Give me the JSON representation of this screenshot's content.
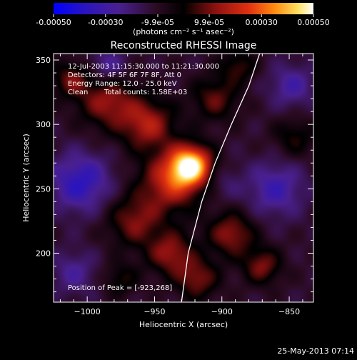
{
  "colorbar": {
    "ticks": [
      {
        "value": -0.0005,
        "label": "-0.00050"
      },
      {
        "value": -0.0003,
        "label": "-0.00030"
      },
      {
        "value": -9.9e-05,
        "label": "-9.9e-05"
      },
      {
        "value": 9.9e-05,
        "label": "9.9e-05"
      },
      {
        "value": 0.0003,
        "label": "0.00030"
      },
      {
        "value": 0.0005,
        "label": "0.00050"
      }
    ],
    "range": [
      -0.0005,
      0.0005
    ],
    "units_label": "(photons cm⁻² s⁻¹ asec⁻²)",
    "colors": [
      "#0000ff",
      "#3a1a8a",
      "#5a2a8a",
      "#2a0a10",
      "#000000",
      "#8a1010",
      "#e03010",
      "#ff7a10",
      "#ffd040",
      "#ffffff"
    ]
  },
  "chart_data": {
    "type": "heatmap",
    "title": "Reconstructed RHESSI Image",
    "xlabel": "Heliocentric X (arcsec)",
    "ylabel": "Heliocentric Y (arcsec)",
    "xlim": [
      -1025,
      -832
    ],
    "ylim": [
      162,
      355
    ],
    "x_ticks": [
      -1000,
      -950,
      -900,
      -850
    ],
    "y_ticks": [
      200,
      250,
      300,
      350
    ],
    "x_tick_labels": [
      "−1000",
      "−950",
      "−900",
      "−850"
    ],
    "y_tick_labels": [
      "200",
      "250",
      "300",
      "350"
    ],
    "peak": {
      "x": -923,
      "y": 268
    },
    "limb": [
      [
        -930,
        162
      ],
      [
        -925,
        200
      ],
      [
        -915,
        240
      ],
      [
        -905,
        270
      ],
      [
        -893,
        300
      ],
      [
        -880,
        330
      ],
      [
        -872,
        355
      ]
    ],
    "sources": [
      {
        "x": -923,
        "y": 268,
        "amp": 1.0,
        "sigma": 11
      },
      {
        "x": -938,
        "y": 255,
        "amp": 0.55,
        "sigma": 16
      },
      {
        "x": -955,
        "y": 300,
        "amp": 0.5,
        "sigma": 14
      },
      {
        "x": -985,
        "y": 318,
        "amp": 0.45,
        "sigma": 15
      },
      {
        "x": -1012,
        "y": 335,
        "amp": 0.35,
        "sigma": 10
      },
      {
        "x": -965,
        "y": 225,
        "amp": 0.4,
        "sigma": 14
      },
      {
        "x": -938,
        "y": 200,
        "amp": 0.45,
        "sigma": 12
      },
      {
        "x": -918,
        "y": 180,
        "amp": 0.4,
        "sigma": 11
      },
      {
        "x": -893,
        "y": 215,
        "amp": 0.45,
        "sigma": 12
      },
      {
        "x": -870,
        "y": 190,
        "amp": 0.4,
        "sigma": 10
      },
      {
        "x": -905,
        "y": 320,
        "amp": 0.35,
        "sigma": 12
      },
      {
        "x": -888,
        "y": 345,
        "amp": 0.3,
        "sigma": 9
      },
      {
        "x": -846,
        "y": 290,
        "amp": 0.25,
        "sigma": 11
      },
      {
        "x": -975,
        "y": 180,
        "amp": 0.25,
        "sigma": 9
      },
      {
        "x": -1005,
        "y": 255,
        "amp": -0.45,
        "sigma": 16
      },
      {
        "x": -985,
        "y": 345,
        "amp": -0.3,
        "sigma": 10
      },
      {
        "x": -860,
        "y": 250,
        "amp": -0.35,
        "sigma": 15
      },
      {
        "x": -848,
        "y": 330,
        "amp": -0.3,
        "sigma": 12
      },
      {
        "x": -1010,
        "y": 185,
        "amp": -0.25,
        "sigma": 12
      },
      {
        "x": -900,
        "y": 255,
        "amp": -0.15,
        "sigma": 10
      }
    ]
  },
  "info": {
    "time_range": "12-Jul-2003 11:15:30.000 to 11:21:30.000",
    "detectors": "Detectors: 4F 5F 6F 7F 8F, Att 0",
    "energy_range": "Energy Range: 12.0 - 25.0 keV",
    "algorithm": "Clean",
    "total_counts": "Total counts: 1.58E+03",
    "peak_position": "Position of Peak = [-923,268]"
  },
  "footer": {
    "date": "25-May-2013 07:14"
  }
}
